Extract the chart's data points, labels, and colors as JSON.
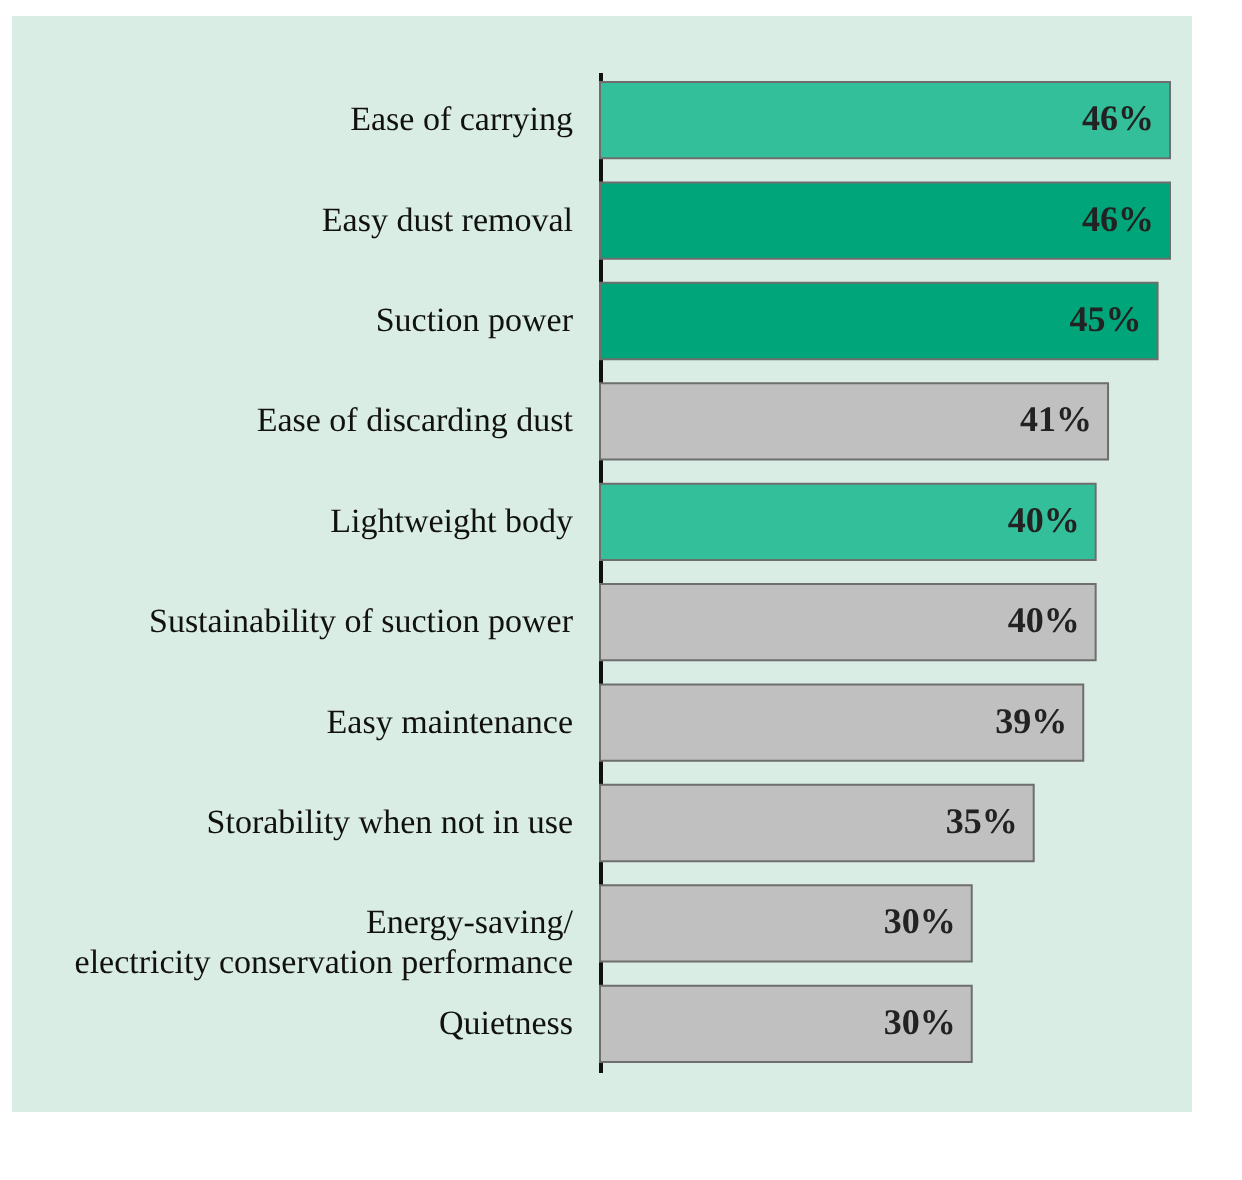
{
  "chart_data": {
    "type": "bar",
    "orientation": "horizontal",
    "categories": [
      "Ease of carrying",
      "Easy dust removal",
      "Suction power",
      "Ease of discarding dust",
      "Lightweight body",
      "Sustainability of suction power",
      "Easy maintenance",
      "Storability when not in use",
      "Energy-saving/\nelectricity conservation performance",
      "Quietness"
    ],
    "values": [
      46,
      46,
      45,
      41,
      40,
      40,
      39,
      35,
      30,
      30
    ],
    "colors": [
      "#33bf99",
      "#00a67a",
      "#00a67a",
      "#c0c0c0",
      "#33bf99",
      "#c0c0c0",
      "#c0c0c0",
      "#c0c0c0",
      "#c0c0c0",
      "#c0c0c0"
    ],
    "value_labels": [
      "46%",
      "46%",
      "45%",
      "41%",
      "40%",
      "40%",
      "39%",
      "35%",
      "30%",
      "30%"
    ]
  }
}
